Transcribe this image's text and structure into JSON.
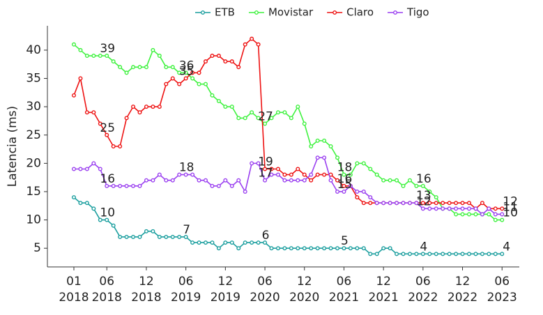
{
  "chart_data": {
    "type": "line",
    "y_label": "Latencia (ms)",
    "x": [
      "2018-01",
      "2018-02",
      "2018-03",
      "2018-04",
      "2018-05",
      "2018-06",
      "2018-07",
      "2018-08",
      "2018-09",
      "2018-10",
      "2018-11",
      "2018-12",
      "2019-01",
      "2019-02",
      "2019-03",
      "2019-04",
      "2019-05",
      "2019-06",
      "2019-07",
      "2019-08",
      "2019-09",
      "2019-10",
      "2019-11",
      "2019-12",
      "2020-01",
      "2020-02",
      "2020-03",
      "2020-04",
      "2020-05",
      "2020-06",
      "2020-07",
      "2020-08",
      "2020-09",
      "2020-10",
      "2020-11",
      "2020-12",
      "2021-01",
      "2021-02",
      "2021-03",
      "2021-04",
      "2021-05",
      "2021-06",
      "2021-07",
      "2021-08",
      "2021-09",
      "2021-10",
      "2021-11",
      "2021-12",
      "2022-01",
      "2022-02",
      "2022-03",
      "2022-04",
      "2022-05",
      "2022-06",
      "2022-07",
      "2022-08",
      "2022-09",
      "2022-10",
      "2022-11",
      "2022-12",
      "2023-01",
      "2023-02",
      "2023-03",
      "2023-04",
      "2023-05",
      "2023-06"
    ],
    "series": [
      {
        "name": "ETB",
        "color": "#1a9e9e",
        "values": [
          14,
          13,
          13,
          12,
          10,
          10,
          9,
          7,
          7,
          7,
          7,
          8,
          8,
          7,
          7,
          7,
          7,
          7,
          6,
          6,
          6,
          6,
          5,
          6,
          6,
          5,
          6,
          6,
          6,
          6,
          5,
          5,
          5,
          5,
          5,
          5,
          5,
          5,
          5,
          5,
          5,
          5,
          5,
          5,
          5,
          4,
          4,
          5,
          5,
          4,
          4,
          4,
          4,
          4,
          4,
          4,
          4,
          4,
          4,
          4,
          4,
          4,
          4,
          4,
          4,
          4
        ]
      },
      {
        "name": "Movistar",
        "color": "#3ef23e",
        "values": [
          41,
          40,
          39,
          39,
          39,
          39,
          38,
          37,
          36,
          37,
          37,
          37,
          40,
          39,
          37,
          37,
          36,
          36,
          35,
          34,
          34,
          32,
          31,
          30,
          30,
          28,
          28,
          29,
          28,
          27,
          28,
          29,
          29,
          28,
          30,
          27,
          23,
          24,
          24,
          23,
          21,
          18,
          18,
          20,
          20,
          19,
          18,
          17,
          17,
          17,
          16,
          17,
          16,
          16,
          15,
          14,
          12,
          12,
          11,
          11,
          11,
          11,
          11,
          11,
          10,
          10
        ]
      },
      {
        "name": "Claro",
        "color": "#ee1111",
        "values": [
          32,
          35,
          29,
          29,
          27,
          25,
          23,
          23,
          28,
          30,
          29,
          30,
          30,
          30,
          34,
          35,
          34,
          35,
          36,
          36,
          38,
          39,
          39,
          38,
          38,
          37,
          41,
          42,
          41,
          19,
          19,
          19,
          18,
          18,
          19,
          18,
          17,
          18,
          18,
          18,
          17,
          16,
          16,
          14,
          13,
          13,
          13,
          13,
          13,
          13,
          13,
          13,
          13,
          13,
          13,
          13,
          13,
          13,
          13,
          13,
          13,
          12,
          13,
          12,
          12,
          12
        ]
      },
      {
        "name": "Tigo",
        "color": "#9a3ff0",
        "values": [
          19,
          19,
          19,
          20,
          19,
          16,
          16,
          16,
          16,
          16,
          16,
          17,
          17,
          18,
          17,
          17,
          18,
          18,
          18,
          17,
          17,
          16,
          16,
          17,
          16,
          17,
          15,
          20,
          20,
          17,
          18,
          18,
          17,
          17,
          17,
          17,
          18,
          21,
          21,
          17,
          15,
          15,
          16,
          15,
          15,
          14,
          13,
          13,
          13,
          13,
          13,
          13,
          13,
          12,
          12,
          12,
          12,
          12,
          12,
          12,
          12,
          12,
          11,
          12,
          11,
          11
        ]
      }
    ],
    "data_labels_at": [
      "2018-06",
      "2019-06",
      "2020-06",
      "2021-06",
      "2022-06",
      "2023-06"
    ],
    "ylim": [
      1.7,
      44.3
    ],
    "yticks": [
      5,
      10,
      15,
      20,
      25,
      30,
      35,
      40
    ],
    "xticks": [
      {
        "value": "2018-01",
        "label": "01\n2018"
      },
      {
        "value": "2018-06",
        "label": "06\n2018"
      },
      {
        "value": "2018-12",
        "label": "12\n2018"
      },
      {
        "value": "2019-06",
        "label": "06\n2019"
      },
      {
        "value": "2019-12",
        "label": "12\n2019"
      },
      {
        "value": "2020-06",
        "label": "06\n2020"
      },
      {
        "value": "2020-12",
        "label": "12\n2020"
      },
      {
        "value": "2021-06",
        "label": "06\n2021"
      },
      {
        "value": "2021-12",
        "label": "12\n2021"
      },
      {
        "value": "2022-06",
        "label": "06\n2022"
      },
      {
        "value": "2022-12",
        "label": "12\n2022"
      },
      {
        "value": "2023-06",
        "label": "06\n2023"
      }
    ],
    "legend": "top"
  }
}
